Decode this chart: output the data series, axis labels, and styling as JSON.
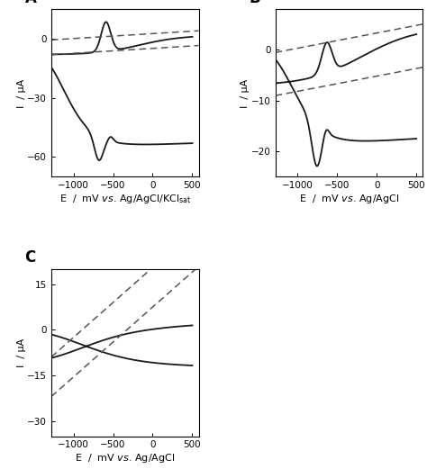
{
  "panel_A": {
    "label": "A",
    "xlabel": "E  /  mV  vs. Ag/AgCl/KCl",
    "xlabel_sub": "sat",
    "ylabel": "I  / μA",
    "xlim": [
      -1280,
      580
    ],
    "ylim": [
      -70,
      15
    ],
    "yticks": [
      -60,
      -30,
      0
    ],
    "xticks": [
      -1000,
      -500,
      0,
      500
    ]
  },
  "panel_B": {
    "label": "B",
    "xlabel": "E  /  mV  vs. Ag/AgCl",
    "ylabel": "I  / μA",
    "xlim": [
      -1280,
      580
    ],
    "ylim": [
      -25,
      8
    ],
    "yticks": [
      -20,
      -10,
      0
    ],
    "xticks": [
      -1000,
      -500,
      0,
      500
    ]
  },
  "panel_C": {
    "label": "C",
    "xlabel": "E  /  mV  vs. Ag/AgCl",
    "ylabel": "I  / μA",
    "xlim": [
      -1280,
      580
    ],
    "ylim": [
      -35,
      20
    ],
    "yticks": [
      -30,
      -15,
      0,
      15
    ],
    "xticks": [
      -1000,
      -500,
      0,
      500
    ]
  },
  "line_color": "#1a1a1a",
  "dashed_color": "#555555",
  "linewidth": 1.3,
  "dash_linewidth": 1.1,
  "fontsize_label": 8,
  "fontsize_tick": 7.5,
  "fontsize_panel": 12
}
